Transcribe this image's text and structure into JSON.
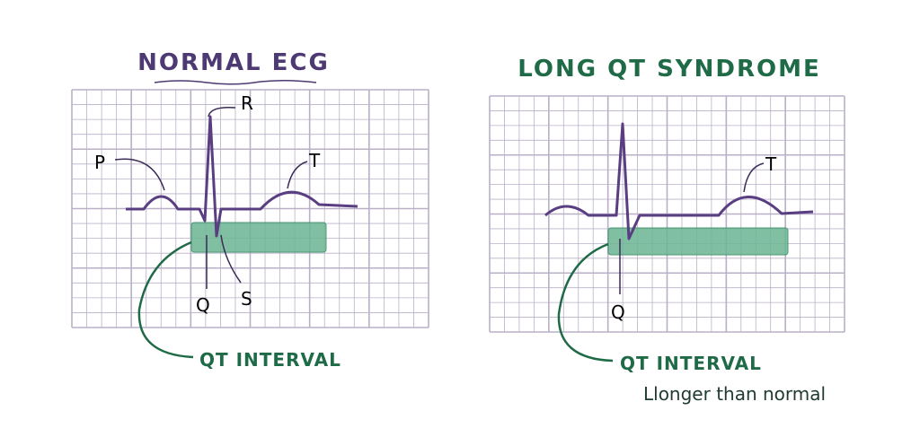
{
  "left": {
    "title": "NORMAL ECG",
    "labels": {
      "r": "R",
      "p": "P",
      "t": "T",
      "q": "Q",
      "s": "S"
    },
    "interval": "QT INTERVAL"
  },
  "right": {
    "title": "LONG QT SYNDROME",
    "labels": {
      "t": "T",
      "q": "Q"
    },
    "interval": "QT INTERVAL",
    "note": "Llonger than normal"
  }
}
